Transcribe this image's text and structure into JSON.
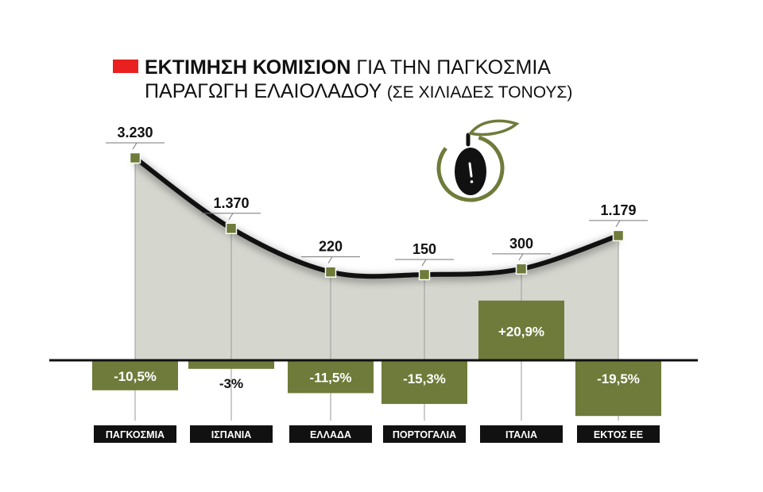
{
  "title": {
    "bold": "ΕΚΤΙΜΗΣΗ ΚΟΜΙΣΙΟΝ",
    "rest": "ΓΙΑ ΤΗΝ ΠΑΓΚΟΣΜΙΑ",
    "line2": "ΠΑΡΑΓΩΓΗ ΕΛΑΙΟΛΑΔΟΥ",
    "paren": "(ΣΕ ΧΙΛΙΑΔΕΣ ΤΟΝΟΥΣ)"
  },
  "colors": {
    "accent_red": "#e8201f",
    "olive_green": "#6e7b3a",
    "area_fill": "#d5d7cf",
    "line": "#111111",
    "label_bg": "#111111"
  },
  "icon": "olive-icon",
  "chart_data": {
    "type": "line",
    "categories": [
      "ΠΑΓΚΟΣΜΙΑ",
      "ΙΣΠΑΝΙΑ",
      "ΕΛΛΑΔΑ",
      "ΠΟΡΤΟΓΑΛΙΑ",
      "ΙΤΑΛΙΑ",
      "ΕΚΤΟΣ ΕΕ"
    ],
    "series": [
      {
        "values": [
          3230,
          1370,
          220,
          150,
          300,
          1179
        ],
        "labels": [
          "3.230",
          "1.370",
          "220",
          "150",
          "300",
          "1.179"
        ]
      },
      {
        "type": "bar",
        "values": [
          -10.5,
          -3,
          -11.5,
          -15.3,
          20.9,
          -19.5
        ],
        "labels": [
          "-10,5%",
          "-3%",
          "-11,5%",
          "-15,3%",
          "+20,9%",
          "-19,5%"
        ]
      }
    ]
  }
}
